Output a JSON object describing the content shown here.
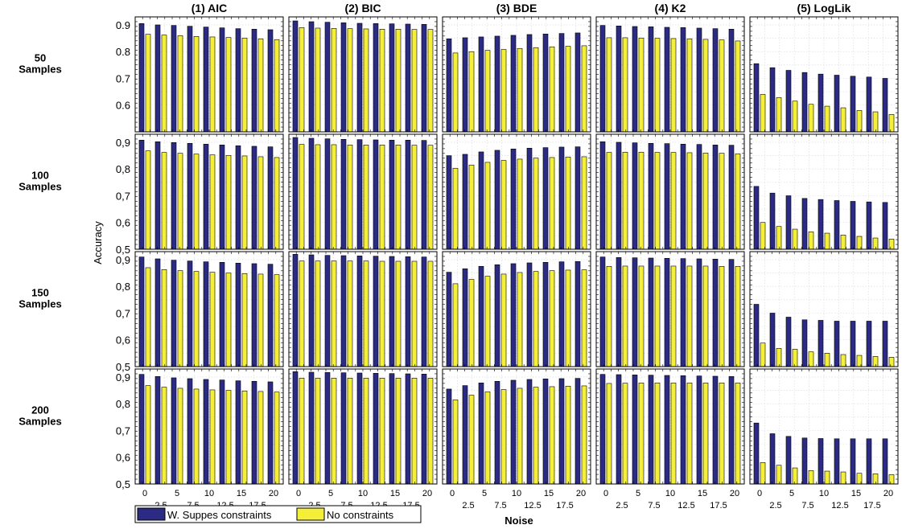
{
  "figure": {
    "column_titles": [
      "(1) AIC",
      "(2) BIC",
      "(3) BDE",
      "(4) K2",
      "(5) LogLik"
    ],
    "row_labels": [
      [
        "50",
        "Samples"
      ],
      [
        "100",
        "Samples"
      ],
      [
        "150",
        "Samples"
      ],
      [
        "200",
        "Samples"
      ]
    ],
    "y_axis_label": "Accuracy",
    "x_axis_label": "Noise",
    "y_tick_labels": {
      "top_row": [
        "0.9",
        "0.8",
        "0.7",
        "0.6"
      ],
      "other_rows": [
        "0,9",
        "0,8",
        "0,7",
        "0,6",
        "0,5"
      ]
    },
    "x_tick_labels_upper": [
      "0",
      "5",
      "10",
      "15",
      "20"
    ],
    "x_tick_labels_lower": [
      "2.5",
      "7.5",
      "12.5",
      "17.5"
    ]
  },
  "legend": {
    "items": [
      {
        "label": "W. Suppes constraints",
        "color": "#2b2b84"
      },
      {
        "label": "No constraints",
        "color": "#f5ef3a"
      }
    ]
  },
  "chart_data": {
    "type": "bar",
    "layout": "grid 4 rows (sample size) x 5 columns (scoring function)",
    "categories": [
      0,
      2.5,
      5,
      7.5,
      10,
      12.5,
      15,
      17.5,
      20
    ],
    "xlabel": "Noise",
    "ylabel": "Accuracy",
    "ylim": [
      0.5,
      0.93
    ],
    "grid": true,
    "legend_position": "bottom-left",
    "series_names": [
      "W. Suppes constraints",
      "No constraints"
    ],
    "panels": [
      {
        "row": "50 Samples",
        "column": "(1) AIC",
        "series": [
          {
            "name": "W. Suppes constraints",
            "values": [
              0.905,
              0.9,
              0.898,
              0.895,
              0.892,
              0.889,
              0.886,
              0.884,
              0.882
            ]
          },
          {
            "name": "No constraints",
            "values": [
              0.865,
              0.862,
              0.86,
              0.857,
              0.855,
              0.853,
              0.851,
              0.848,
              0.845
            ]
          }
        ]
      },
      {
        "row": "50 Samples",
        "column": "(2) BIC",
        "series": [
          {
            "name": "W. Suppes constraints",
            "values": [
              0.915,
              0.912,
              0.91,
              0.908,
              0.906,
              0.905,
              0.904,
              0.903,
              0.902
            ]
          },
          {
            "name": "No constraints",
            "values": [
              0.89,
              0.888,
              0.887,
              0.886,
              0.885,
              0.884,
              0.884,
              0.883,
              0.883
            ]
          }
        ]
      },
      {
        "row": "50 Samples",
        "column": "(3) BDE",
        "series": [
          {
            "name": "W. Suppes constraints",
            "values": [
              0.848,
              0.852,
              0.855,
              0.858,
              0.861,
              0.864,
              0.866,
              0.868,
              0.87
            ]
          },
          {
            "name": "No constraints",
            "values": [
              0.795,
              0.8,
              0.805,
              0.808,
              0.812,
              0.815,
              0.818,
              0.82,
              0.822
            ]
          }
        ]
      },
      {
        "row": "50 Samples",
        "column": "(4) K2",
        "series": [
          {
            "name": "W. Suppes constraints",
            "values": [
              0.898,
              0.896,
              0.894,
              0.893,
              0.891,
              0.89,
              0.888,
              0.886,
              0.884
            ]
          },
          {
            "name": "No constraints",
            "values": [
              0.852,
              0.852,
              0.851,
              0.85,
              0.849,
              0.848,
              0.846,
              0.844,
              0.84
            ]
          }
        ]
      },
      {
        "row": "50 Samples",
        "column": "(5) LogLik",
        "series": [
          {
            "name": "W. Suppes constraints",
            "values": [
              0.755,
              0.74,
              0.73,
              0.722,
              0.716,
              0.712,
              0.708,
              0.705,
              0.7
            ]
          },
          {
            "name": "No constraints",
            "values": [
              0.64,
              0.628,
              0.615,
              0.603,
              0.596,
              0.59,
              0.58,
              0.575,
              0.565
            ]
          }
        ]
      },
      {
        "row": "100 Samples",
        "column": "(1) AIC",
        "series": [
          {
            "name": "W. Suppes constraints",
            "values": [
              0.908,
              0.902,
              0.899,
              0.896,
              0.893,
              0.89,
              0.887,
              0.885,
              0.883
            ]
          },
          {
            "name": "No constraints",
            "values": [
              0.868,
              0.862,
              0.859,
              0.856,
              0.853,
              0.851,
              0.849,
              0.846,
              0.843
            ]
          }
        ]
      },
      {
        "row": "100 Samples",
        "column": "(2) BIC",
        "series": [
          {
            "name": "W. Suppes constraints",
            "values": [
              0.918,
              0.915,
              0.913,
              0.911,
              0.91,
              0.909,
              0.908,
              0.908,
              0.907
            ]
          },
          {
            "name": "No constraints",
            "values": [
              0.892,
              0.891,
              0.891,
              0.89,
              0.89,
              0.89,
              0.89,
              0.889,
              0.889
            ]
          }
        ]
      },
      {
        "row": "100 Samples",
        "column": "(3) BDE",
        "series": [
          {
            "name": "W. Suppes constraints",
            "values": [
              0.85,
              0.855,
              0.864,
              0.87,
              0.875,
              0.878,
              0.88,
              0.882,
              0.883
            ]
          },
          {
            "name": "No constraints",
            "values": [
              0.803,
              0.815,
              0.825,
              0.832,
              0.837,
              0.841,
              0.843,
              0.845,
              0.846
            ]
          }
        ]
      },
      {
        "row": "100 Samples",
        "column": "(4) K2",
        "series": [
          {
            "name": "W. Suppes constraints",
            "values": [
              0.902,
              0.9,
              0.898,
              0.896,
              0.895,
              0.893,
              0.892,
              0.89,
              0.889
            ]
          },
          {
            "name": "No constraints",
            "values": [
              0.862,
              0.863,
              0.863,
              0.862,
              0.862,
              0.861,
              0.86,
              0.859,
              0.857
            ]
          }
        ]
      },
      {
        "row": "100 Samples",
        "column": "(5) LogLik",
        "series": [
          {
            "name": "W. Suppes constraints",
            "values": [
              0.735,
              0.71,
              0.7,
              0.69,
              0.686,
              0.682,
              0.679,
              0.677,
              0.675
            ]
          },
          {
            "name": "No constraints",
            "values": [
              0.6,
              0.585,
              0.575,
              0.565,
              0.56,
              0.553,
              0.548,
              0.542,
              0.538
            ]
          }
        ]
      },
      {
        "row": "150 Samples",
        "column": "(1) AIC",
        "series": [
          {
            "name": "W. Suppes constraints",
            "values": [
              0.91,
              0.903,
              0.898,
              0.895,
              0.892,
              0.89,
              0.887,
              0.885,
              0.883
            ]
          },
          {
            "name": "No constraints",
            "values": [
              0.87,
              0.863,
              0.859,
              0.856,
              0.853,
              0.85,
              0.848,
              0.846,
              0.844
            ]
          }
        ]
      },
      {
        "row": "150 Samples",
        "column": "(2) BIC",
        "series": [
          {
            "name": "W. Suppes constraints",
            "values": [
              0.92,
              0.918,
              0.916,
              0.915,
              0.914,
              0.913,
              0.912,
              0.911,
              0.91
            ]
          },
          {
            "name": "No constraints",
            "values": [
              0.895,
              0.895,
              0.895,
              0.895,
              0.895,
              0.894,
              0.894,
              0.894,
              0.894
            ]
          }
        ]
      },
      {
        "row": "150 Samples",
        "column": "(3) BDE",
        "series": [
          {
            "name": "W. Suppes constraints",
            "values": [
              0.853,
              0.866,
              0.875,
              0.881,
              0.885,
              0.888,
              0.89,
              0.892,
              0.893
            ]
          },
          {
            "name": "No constraints",
            "values": [
              0.81,
              0.826,
              0.838,
              0.846,
              0.852,
              0.856,
              0.859,
              0.861,
              0.862
            ]
          }
        ]
      },
      {
        "row": "150 Samples",
        "column": "(4) K2",
        "series": [
          {
            "name": "W. Suppes constraints",
            "values": [
              0.91,
              0.908,
              0.907,
              0.906,
              0.905,
              0.904,
              0.903,
              0.902,
              0.901
            ]
          },
          {
            "name": "No constraints",
            "values": [
              0.875,
              0.876,
              0.876,
              0.876,
              0.876,
              0.876,
              0.876,
              0.875,
              0.875
            ]
          }
        ]
      },
      {
        "row": "150 Samples",
        "column": "(5) LogLik",
        "series": [
          {
            "name": "W. Suppes constraints",
            "values": [
              0.733,
              0.7,
              0.685,
              0.675,
              0.673,
              0.67,
              0.67,
              0.67,
              0.67
            ]
          },
          {
            "name": "No constraints",
            "values": [
              0.588,
              0.568,
              0.565,
              0.555,
              0.55,
              0.545,
              0.542,
              0.538,
              0.535
            ]
          }
        ]
      },
      {
        "row": "200 Samples",
        "column": "(1) AIC",
        "series": [
          {
            "name": "W. Suppes constraints",
            "values": [
              0.91,
              0.902,
              0.897,
              0.894,
              0.891,
              0.889,
              0.886,
              0.884,
              0.882
            ]
          },
          {
            "name": "No constraints",
            "values": [
              0.868,
              0.862,
              0.858,
              0.855,
              0.852,
              0.85,
              0.848,
              0.846,
              0.844
            ]
          }
        ]
      },
      {
        "row": "200 Samples",
        "column": "(2) BIC",
        "series": [
          {
            "name": "W. Suppes constraints",
            "values": [
              0.92,
              0.918,
              0.917,
              0.916,
              0.915,
              0.914,
              0.913,
              0.912,
              0.911
            ]
          },
          {
            "name": "No constraints",
            "values": [
              0.896,
              0.896,
              0.896,
              0.896,
              0.896,
              0.896,
              0.896,
              0.896,
              0.896
            ]
          }
        ]
      },
      {
        "row": "200 Samples",
        "column": "(3) BDE",
        "series": [
          {
            "name": "W. Suppes constraints",
            "values": [
              0.855,
              0.868,
              0.878,
              0.884,
              0.888,
              0.891,
              0.893,
              0.894,
              0.895
            ]
          },
          {
            "name": "No constraints",
            "values": [
              0.815,
              0.832,
              0.845,
              0.853,
              0.858,
              0.862,
              0.864,
              0.866,
              0.867
            ]
          }
        ]
      },
      {
        "row": "200 Samples",
        "column": "(4) K2",
        "series": [
          {
            "name": "W. Suppes constraints",
            "values": [
              0.91,
              0.909,
              0.908,
              0.907,
              0.906,
              0.905,
              0.904,
              0.903,
              0.902
            ]
          },
          {
            "name": "No constraints",
            "values": [
              0.876,
              0.877,
              0.878,
              0.878,
              0.878,
              0.878,
              0.878,
              0.878,
              0.878
            ]
          }
        ]
      },
      {
        "row": "200 Samples",
        "column": "(5) LogLik",
        "series": [
          {
            "name": "W. Suppes constraints",
            "values": [
              0.728,
              0.688,
              0.678,
              0.672,
              0.67,
              0.669,
              0.669,
              0.669,
              0.669
            ]
          },
          {
            "name": "No constraints",
            "values": [
              0.58,
              0.57,
              0.56,
              0.55,
              0.548,
              0.545,
              0.54,
              0.538,
              0.535
            ]
          }
        ]
      }
    ]
  }
}
